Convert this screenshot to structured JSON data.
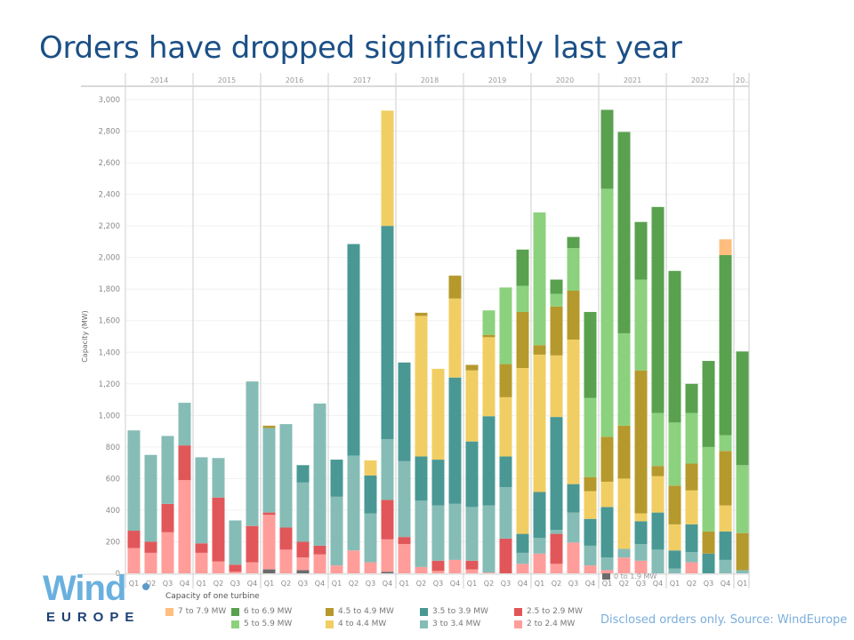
{
  "title": "Orders have dropped significantly last year",
  "logo": {
    "line1": "Wind",
    "line2": "EUROPE"
  },
  "source_note": "Disclosed orders only. Source: WindEurope",
  "legend": {
    "title": "Capacity of one turbine"
  },
  "chart_data": {
    "type": "bar",
    "stacked": true,
    "title": "Orders have dropped significantly last year",
    "xlabel": "",
    "ylabel": "Capacity (MW)",
    "ylim": [
      0,
      3000
    ],
    "yticks": [
      0,
      200,
      400,
      600,
      800,
      1000,
      1200,
      1400,
      1600,
      1800,
      2000,
      2200,
      2400,
      2600,
      2800,
      3000
    ],
    "ytick_labels": [
      "0",
      "200",
      "400",
      "600",
      "800",
      "1,000",
      "1,200",
      "1,400",
      "1,600",
      "1,800",
      "2,000",
      "2,200",
      "2,400",
      "2,600",
      "2,800",
      "3,000"
    ],
    "grid": true,
    "legend_position": "bottom",
    "years": [
      {
        "label": "2014",
        "quarters": 4
      },
      {
        "label": "2015",
        "quarters": 4
      },
      {
        "label": "2016",
        "quarters": 4
      },
      {
        "label": "2017",
        "quarters": 4
      },
      {
        "label": "2018",
        "quarters": 4
      },
      {
        "label": "2019",
        "quarters": 4
      },
      {
        "label": "2020",
        "quarters": 4
      },
      {
        "label": "2021",
        "quarters": 4
      },
      {
        "label": "2022",
        "quarters": 4
      },
      {
        "label": "20..",
        "quarters": 1
      }
    ],
    "categories": [
      "2014 Q1",
      "2014 Q2",
      "2014 Q3",
      "2014 Q4",
      "2015 Q1",
      "2015 Q2",
      "2015 Q3",
      "2015 Q4",
      "2016 Q1",
      "2016 Q2",
      "2016 Q3",
      "2016 Q4",
      "2017 Q1",
      "2017 Q2",
      "2017 Q3",
      "2017 Q4",
      "2018 Q1",
      "2018 Q2",
      "2018 Q3",
      "2018 Q4",
      "2019 Q1",
      "2019 Q2",
      "2019 Q3",
      "2019 Q4",
      "2020 Q1",
      "2020 Q2",
      "2020 Q3",
      "2020 Q4",
      "2021 Q1",
      "2021 Q2",
      "2021 Q3",
      "2021 Q4",
      "2022 Q1",
      "2022 Q2",
      "2022 Q3",
      "2022 Q4",
      "2023 Q1"
    ],
    "quarter_labels": [
      "Q1",
      "Q2",
      "Q3",
      "Q4"
    ],
    "series": [
      {
        "name": "0 to 1.9 MW",
        "color": "#6b6b6b",
        "values": [
          0,
          0,
          0,
          0,
          0,
          0,
          0,
          0,
          25,
          0,
          20,
          0,
          0,
          0,
          0,
          10,
          0,
          0,
          0,
          0,
          0,
          0,
          0,
          0,
          0,
          0,
          0,
          0,
          0,
          0,
          0,
          0,
          0,
          0,
          0,
          0,
          0
        ]
      },
      {
        "name": "2 to 2.4 MW",
        "color": "#ff9d9a",
        "values": [
          160,
          130,
          260,
          590,
          130,
          75,
          10,
          70,
          345,
          150,
          80,
          120,
          50,
          145,
          70,
          205,
          185,
          40,
          15,
          85,
          25,
          5,
          0,
          60,
          125,
          60,
          195,
          50,
          20,
          100,
          80,
          0,
          0,
          70,
          0,
          0,
          0
        ]
      },
      {
        "name": "2.5 to 2.9 MW",
        "color": "#e15759",
        "values": [
          110,
          70,
          180,
          220,
          60,
          405,
          45,
          230,
          15,
          140,
          100,
          55,
          0,
          0,
          0,
          250,
          45,
          0,
          65,
          0,
          55,
          0,
          220,
          0,
          0,
          190,
          0,
          0,
          0,
          0,
          0,
          0,
          0,
          0,
          0,
          0,
          0
        ]
      },
      {
        "name": "3 to 3.4 MW",
        "color": "#86bcb6",
        "values": [
          635,
          550,
          430,
          270,
          545,
          250,
          280,
          915,
          535,
          655,
          375,
          900,
          435,
          600,
          310,
          385,
          480,
          420,
          350,
          355,
          340,
          425,
          325,
          70,
          100,
          25,
          190,
          125,
          80,
          55,
          105,
          150,
          30,
          65,
          0,
          85,
          20
        ]
      },
      {
        "name": "3.5 to 3.9 MW",
        "color": "#499894",
        "values": [
          0,
          0,
          0,
          0,
          0,
          0,
          0,
          0,
          0,
          0,
          110,
          0,
          235,
          1340,
          240,
          1350,
          625,
          280,
          290,
          800,
          415,
          565,
          195,
          120,
          290,
          715,
          180,
          170,
          320,
          0,
          145,
          235,
          115,
          175,
          125,
          180,
          0
        ]
      },
      {
        "name": "4 to 4.4 MW",
        "color": "#f1ce63",
        "values": [
          0,
          0,
          0,
          0,
          0,
          0,
          0,
          0,
          0,
          0,
          0,
          0,
          0,
          0,
          95,
          730,
          0,
          890,
          575,
          500,
          450,
          500,
          375,
          1050,
          870,
          390,
          915,
          175,
          160,
          445,
          50,
          230,
          165,
          215,
          0,
          165,
          0
        ]
      },
      {
        "name": "4.5 to 4.9 MW",
        "color": "#b6992d",
        "values": [
          0,
          0,
          0,
          0,
          0,
          0,
          0,
          0,
          15,
          0,
          0,
          0,
          0,
          0,
          0,
          0,
          0,
          20,
          0,
          145,
          35,
          15,
          210,
          355,
          60,
          310,
          310,
          90,
          285,
          335,
          905,
          65,
          245,
          170,
          140,
          345,
          235
        ]
      },
      {
        "name": "5 to 5.9 MW",
        "color": "#8cd17d",
        "values": [
          0,
          0,
          0,
          0,
          0,
          0,
          0,
          0,
          0,
          0,
          0,
          0,
          0,
          0,
          0,
          0,
          0,
          0,
          0,
          0,
          0,
          155,
          485,
          165,
          840,
          80,
          270,
          500,
          1570,
          585,
          575,
          335,
          400,
          320,
          535,
          100,
          430
        ]
      },
      {
        "name": "6 to 6.9 MW",
        "color": "#59a14f",
        "values": [
          0,
          0,
          0,
          0,
          0,
          0,
          0,
          0,
          0,
          0,
          0,
          0,
          0,
          0,
          0,
          0,
          0,
          0,
          0,
          0,
          0,
          0,
          0,
          230,
          0,
          90,
          70,
          545,
          500,
          1275,
          365,
          1305,
          960,
          185,
          545,
          1140,
          720
        ]
      },
      {
        "name": "7 to 7.9 MW",
        "color": "#ffbe7d",
        "values": [
          0,
          0,
          0,
          0,
          0,
          0,
          0,
          0,
          0,
          0,
          0,
          0,
          0,
          0,
          0,
          0,
          0,
          0,
          0,
          0,
          0,
          0,
          0,
          0,
          0,
          0,
          0,
          0,
          0,
          0,
          0,
          0,
          0,
          0,
          0,
          100,
          0
        ]
      }
    ],
    "legend_layout": [
      [
        "7 to 7.9 MW"
      ],
      [
        "6 to 6.9 MW",
        "5 to 5.9 MW"
      ],
      [
        "4.5 to 4.9 MW",
        "4 to 4.4 MW"
      ],
      [
        "3.5 to 3.9 MW",
        "3 to 3.4 MW"
      ],
      [
        "2.5 to 2.9 MW",
        "2 to 2.4 MW"
      ]
    ],
    "overlay_legend_label": "0 to 1.9 MW"
  }
}
